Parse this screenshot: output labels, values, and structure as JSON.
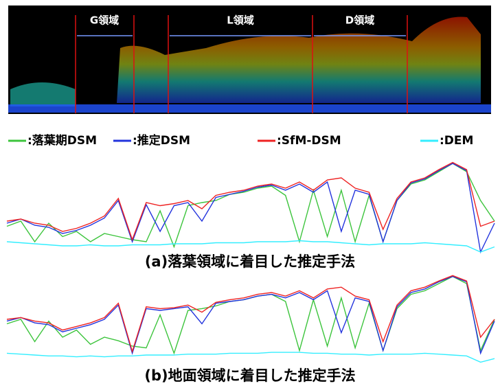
{
  "point_cloud": {
    "regions": [
      "G領域",
      "L領域",
      "D領域"
    ]
  },
  "chart_data": [
    {
      "type": "line",
      "title": "(a)落葉領域に着目した推定手法",
      "ylim": [
        0,
        100
      ],
      "series": [
        {
          "name": ":落葉期DSM",
          "color": "#3cc43c",
          "values": [
            35,
            40,
            20,
            38,
            25,
            30,
            20,
            28,
            25,
            22,
            20,
            50,
            15,
            55,
            58,
            60,
            66,
            68,
            72,
            74,
            65,
            20,
            70,
            25,
            70,
            20,
            65,
            20,
            60,
            76,
            80,
            88,
            96,
            88,
            60,
            40
          ]
        },
        {
          "name": ":推定DSM",
          "color": "#2233dd",
          "values": [
            38,
            42,
            36,
            34,
            28,
            31,
            36,
            43,
            60,
            20,
            56,
            30,
            55,
            58,
            40,
            63,
            66,
            69,
            73,
            75,
            70,
            76,
            68,
            78,
            30,
            70,
            66,
            20,
            60,
            77,
            81,
            89,
            96,
            89,
            10,
            38
          ]
        },
        {
          "name": ":SfM-DSM",
          "color": "#ee2222",
          "values": [
            40,
            42,
            38,
            36,
            30,
            33,
            38,
            45,
            62,
            22,
            58,
            55,
            57,
            60,
            52,
            65,
            68,
            70,
            74,
            76,
            72,
            78,
            70,
            80,
            82,
            72,
            68,
            32,
            62,
            78,
            82,
            90,
            97,
            90,
            35,
            40
          ]
        },
        {
          "name": ":DEM",
          "color": "#33eeff",
          "values": [
            20,
            19,
            18,
            17,
            16,
            16,
            17,
            16,
            16,
            17,
            17,
            17,
            18,
            18,
            18,
            19,
            19,
            19,
            20,
            20,
            20,
            21,
            20,
            20,
            19,
            18,
            17,
            18,
            18,
            18,
            19,
            18,
            17,
            16,
            10,
            15
          ]
        }
      ]
    },
    {
      "type": "line",
      "title": "(b)地面領域に着目した推定手法",
      "ylim": [
        0,
        100
      ],
      "series": [
        {
          "name": ":落葉期DSM",
          "color": "#3cc43c",
          "values": [
            45,
            50,
            25,
            48,
            30,
            38,
            22,
            30,
            26,
            20,
            18,
            55,
            12,
            60,
            62,
            65,
            70,
            72,
            76,
            78,
            70,
            15,
            72,
            20,
            74,
            18,
            68,
            15,
            62,
            78,
            82,
            90,
            98,
            90,
            15,
            50
          ]
        },
        {
          "name": ":推定DSM",
          "color": "#2233dd",
          "values": [
            48,
            52,
            46,
            44,
            36,
            40,
            44,
            50,
            66,
            12,
            62,
            60,
            62,
            64,
            45,
            68,
            70,
            72,
            76,
            78,
            74,
            80,
            72,
            82,
            35,
            74,
            70,
            15,
            64,
            80,
            84,
            92,
            98,
            92,
            12,
            48
          ]
        },
        {
          "name": ":SfM-DSM",
          "color": "#ee2222",
          "values": [
            50,
            52,
            48,
            46,
            38,
            42,
            46,
            52,
            68,
            14,
            64,
            62,
            63,
            66,
            58,
            69,
            72,
            74,
            78,
            80,
            76,
            82,
            74,
            84,
            86,
            76,
            72,
            25,
            66,
            82,
            86,
            93,
            99,
            93,
            30,
            50
          ]
        },
        {
          "name": ":DEM",
          "color": "#33eeff",
          "values": [
            12,
            11,
            10,
            9,
            9,
            8,
            9,
            8,
            9,
            9,
            10,
            10,
            10,
            11,
            11,
            11,
            12,
            12,
            12,
            13,
            13,
            13,
            12,
            12,
            11,
            11,
            10,
            11,
            11,
            11,
            12,
            11,
            10,
            9,
            2,
            6
          ]
        }
      ]
    }
  ]
}
